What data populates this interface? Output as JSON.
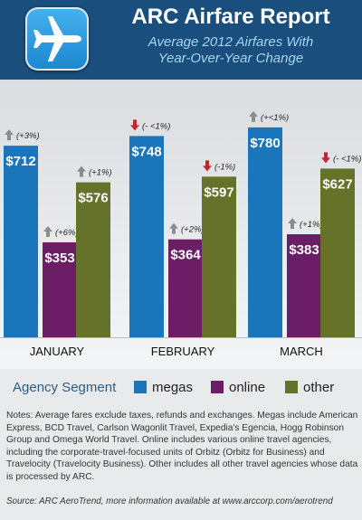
{
  "header": {
    "title": "ARC Airfare Report",
    "subtitle_line1": "Average 2012 Airfares With",
    "subtitle_line2": "Year-Over-Year Change",
    "icon": "airplane-icon"
  },
  "chart_data": {
    "type": "bar",
    "categories": [
      "JANUARY",
      "FEBRUARY",
      "MARCH"
    ],
    "series": [
      {
        "name": "megas",
        "color": "#1a75bb",
        "values": [
          712,
          748,
          780
        ],
        "labels": [
          "$712",
          "$748",
          "$780"
        ],
        "change": [
          "(+3%)",
          "(- <1%)",
          "(+<1%)"
        ],
        "direction": [
          "up",
          "down",
          "up"
        ]
      },
      {
        "name": "online",
        "color": "#6b1d66",
        "values": [
          353,
          364,
          383
        ],
        "labels": [
          "$353",
          "$364",
          "$383"
        ],
        "change": [
          "(+6%)",
          "(+2%)",
          "(+1%)"
        ],
        "direction": [
          "up",
          "up",
          "up"
        ]
      },
      {
        "name": "other",
        "color": "#66722a",
        "values": [
          576,
          597,
          627
        ],
        "labels": [
          "$576",
          "$597",
          "$627"
        ],
        "change": [
          "(+1%)",
          "(-1%)",
          "(- <1%)"
        ],
        "direction": [
          "up",
          "down",
          "down"
        ]
      }
    ],
    "ylim": [
      0,
      830
    ],
    "grid": false,
    "legend_placement": "bottom",
    "arrow_colors": {
      "up": "#8c8c8c",
      "down": "#c0282d"
    }
  },
  "legend": {
    "title": "Agency Segment",
    "items": [
      {
        "label": "megas",
        "color": "#1a75bb"
      },
      {
        "label": "online",
        "color": "#6b1d66"
      },
      {
        "label": "other",
        "color": "#66722a"
      }
    ]
  },
  "notes": "Notes: Average fares exclude taxes, refunds and exchanges. Megas include American Express, BCD Travel, Carlson Wagonlit Travel, Expedia's Egencia, Hogg Robinson Group and Omega World Travel. Online includes various online travel agencies, including the corporate-travel-focused units of Orbitz (Orbitz for Business) and Travelocity (Travelocity Business). Other includes all other travel agencies whose data is processed by ARC.",
  "source": "Source: ARC AeroTrend, more information available at www.arccorp.com/aerotrend"
}
